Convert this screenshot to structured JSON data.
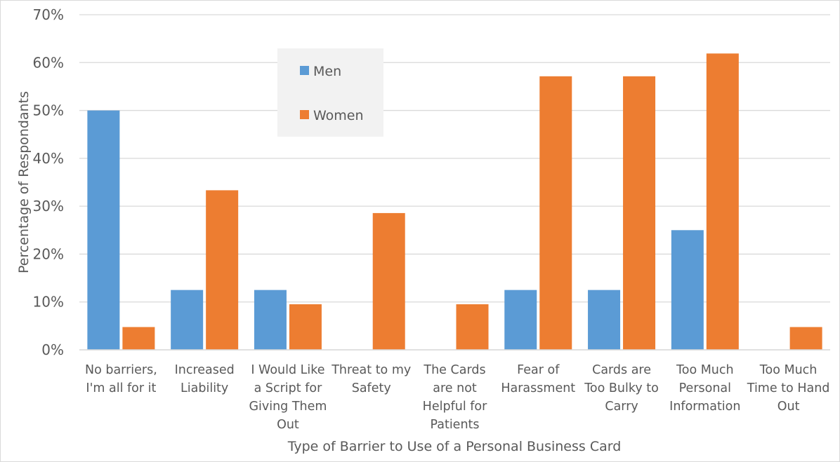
{
  "chart_data": {
    "type": "bar",
    "title": "",
    "xlabel": "Type of Barrier to Use of a Personal Business Card",
    "ylabel": "Percentage of Respondants",
    "ylim": [
      0,
      70
    ],
    "yticks": [
      "0%",
      "10%",
      "20%",
      "30%",
      "40%",
      "50%",
      "60%",
      "70%"
    ],
    "grid": true,
    "legend": "top-left-inside",
    "categories": [
      [
        "No barriers,",
        "I'm all for it"
      ],
      [
        "Increased",
        "Liability"
      ],
      [
        "I Would Like",
        "a Script for",
        "Giving Them",
        "Out"
      ],
      [
        "Threat to my",
        "Safety"
      ],
      [
        "The Cards",
        "are not",
        "Helpful for",
        "Patients"
      ],
      [
        "Fear of",
        "Harassment"
      ],
      [
        "Cards are",
        "Too Bulky to",
        "Carry"
      ],
      [
        "Too Much",
        "Personal",
        "Information"
      ],
      [
        "Too Much",
        "Time to Hand",
        "Out"
      ]
    ],
    "series": [
      {
        "name": "Men",
        "color": "#5b9bd5",
        "values": [
          50,
          12.5,
          12.5,
          0,
          0,
          12.5,
          12.5,
          25,
          0
        ]
      },
      {
        "name": "Women",
        "color": "#ed7d31",
        "values": [
          4.76,
          33.33,
          9.52,
          28.57,
          9.52,
          57.14,
          57.14,
          61.9,
          4.76
        ]
      }
    ]
  }
}
